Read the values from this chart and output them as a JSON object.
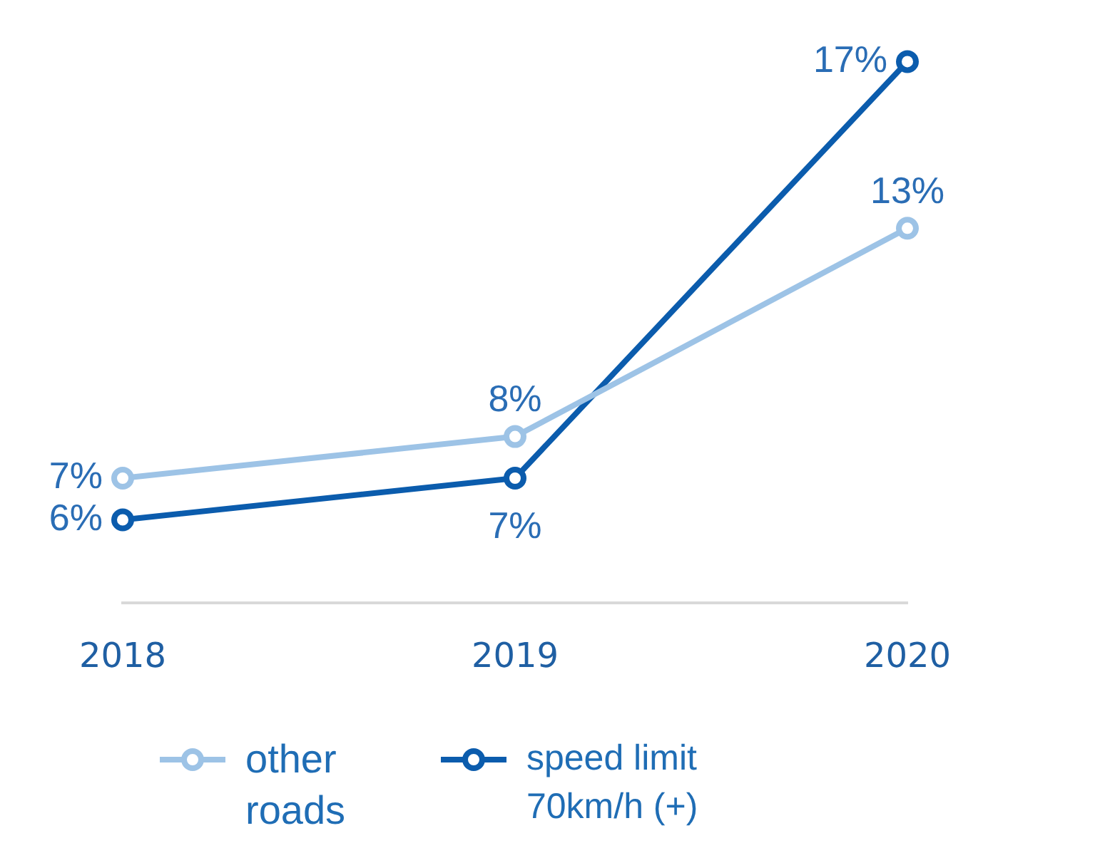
{
  "chart_data": {
    "type": "line",
    "categories": [
      "2018",
      "2019",
      "2020"
    ],
    "series": [
      {
        "name": "other roads",
        "color": "#9dc3e6",
        "values": [
          7,
          8,
          13
        ],
        "value_labels": [
          "7%",
          "8%",
          "13%"
        ]
      },
      {
        "name": "speed limit 70km/h (+)",
        "color": "#0b5cad",
        "values": [
          6,
          7,
          17
        ],
        "value_labels": [
          "6%",
          "7%",
          "17%"
        ]
      }
    ],
    "tick_labels": "x",
    "grid": false,
    "legend": "bottom",
    "marker": "circle",
    "line_style": "solid"
  }
}
